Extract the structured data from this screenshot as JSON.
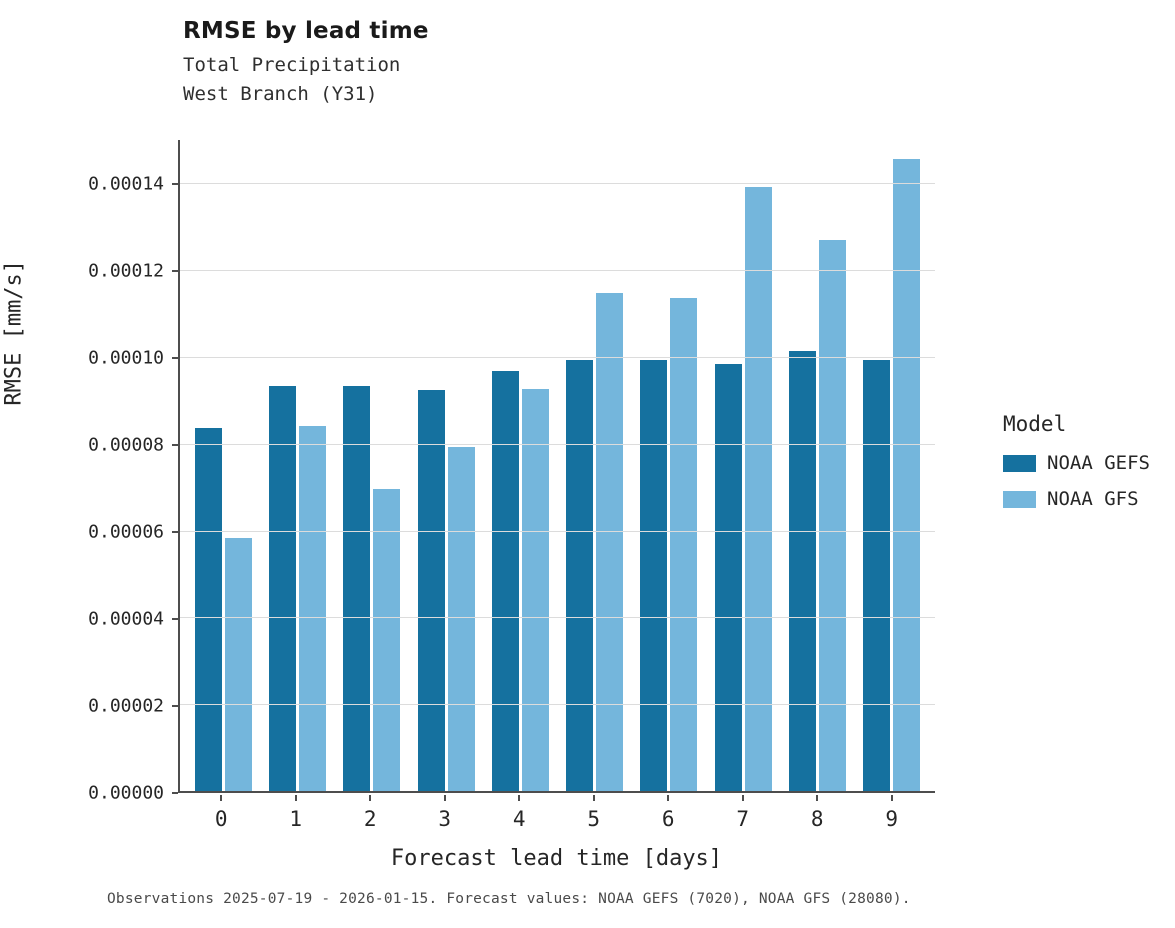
{
  "header": {
    "title": "RMSE by lead time",
    "subtitle": "Total Precipitation\nWest Branch (Y31)"
  },
  "chart_data": {
    "type": "bar",
    "title": "RMSE by lead time",
    "subtitle_lines": [
      "Total Precipitation",
      "West Branch (Y31)"
    ],
    "xlabel": "Forecast lead time [days]",
    "ylabel": "RMSE [mm/s]",
    "categories": [
      "0",
      "1",
      "2",
      "3",
      "4",
      "5",
      "6",
      "7",
      "8",
      "9"
    ],
    "series": [
      {
        "name": "NOAA GEFS",
        "color": "#15719f",
        "values": [
          8.37e-05,
          9.33e-05,
          9.33e-05,
          9.23e-05,
          9.67e-05,
          9.94e-05,
          9.94e-05,
          9.83e-05,
          0.0001013,
          9.92e-05
        ]
      },
      {
        "name": "NOAA GFS",
        "color": "#74b6dc",
        "values": [
          5.82e-05,
          8.41e-05,
          6.96e-05,
          7.93e-05,
          9.26e-05,
          0.0001147,
          0.0001136,
          0.0001391,
          0.000127,
          0.0001456
        ]
      }
    ],
    "ylim": [
      0,
      0.00015
    ],
    "yticks": [
      {
        "value": 0.0,
        "label": "0.00000"
      },
      {
        "value": 2e-05,
        "label": "0.00002"
      },
      {
        "value": 4e-05,
        "label": "0.00004"
      },
      {
        "value": 6e-05,
        "label": "0.00006"
      },
      {
        "value": 8e-05,
        "label": "0.00008"
      },
      {
        "value": 0.0001,
        "label": "0.00010"
      },
      {
        "value": 0.00012,
        "label": "0.00012"
      },
      {
        "value": 0.00014,
        "label": "0.00014"
      }
    ],
    "grid": true,
    "legend": {
      "title": "Model",
      "position": "right",
      "entries": [
        {
          "label": "NOAA GEFS",
          "color": "#15719f"
        },
        {
          "label": "NOAA GFS",
          "color": "#74b6dc"
        }
      ]
    },
    "caption": "Observations 2025-07-19 - 2026-01-15. Forecast values: NOAA GEFS (7020), NOAA GFS (28080)."
  }
}
